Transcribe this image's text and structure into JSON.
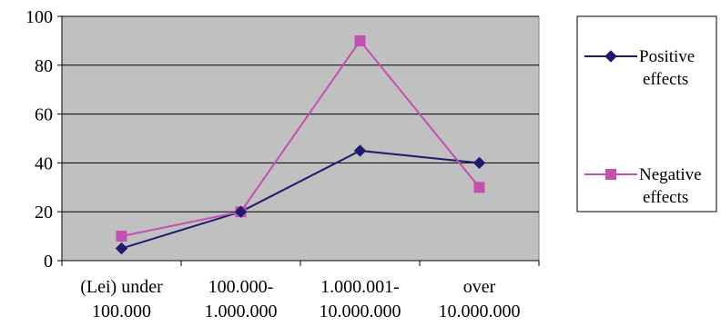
{
  "chart_data": {
    "type": "line",
    "categories": [
      [
        "(Lei) under",
        "100.000"
      ],
      [
        "100.000-",
        "1.000.000"
      ],
      [
        "1.000.001-",
        "10.000.000"
      ],
      [
        "over",
        "10.000.000"
      ]
    ],
    "series": [
      {
        "name": [
          "Positive",
          "effects"
        ],
        "values": [
          5,
          20,
          45,
          40
        ],
        "color": "#1f1a6e",
        "marker": "diamond"
      },
      {
        "name": [
          "Negative",
          "effects"
        ],
        "values": [
          10,
          20,
          90,
          30
        ],
        "color": "#c44fb0",
        "marker": "square"
      }
    ],
    "ylim": [
      0,
      100
    ],
    "yticks": [
      "0",
      "20",
      "40",
      "60",
      "80",
      "100"
    ],
    "grid": true,
    "plot_background": "#c0c0c0",
    "legend_position": "right"
  }
}
